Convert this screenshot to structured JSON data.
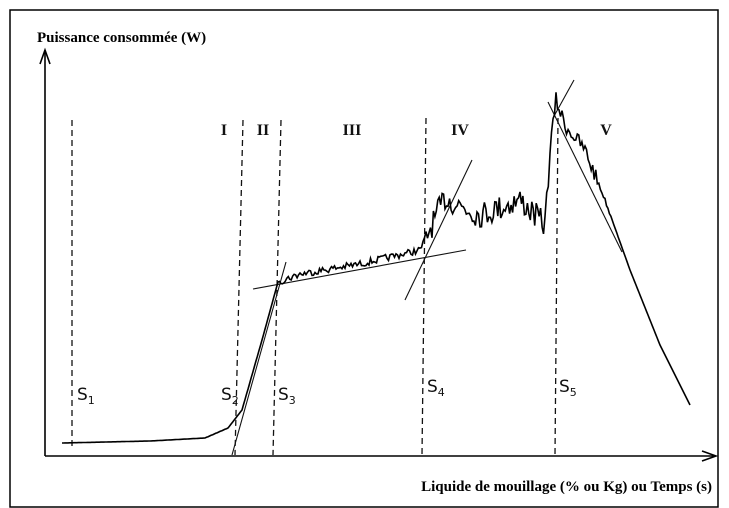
{
  "y_axis_label": "Puissance consommée (W)",
  "x_axis_label": "Liquide de mouillage (% ou Kg) ou Temps (s)",
  "regions": [
    "I",
    "II",
    "III",
    "IV",
    "V"
  ],
  "thresholds": [
    {
      "symbol": "S",
      "sub": "1"
    },
    {
      "symbol": "S",
      "sub": "2"
    },
    {
      "symbol": "S",
      "sub": "3"
    },
    {
      "symbol": "S",
      "sub": "4"
    },
    {
      "symbol": "S",
      "sub": "5"
    }
  ]
}
